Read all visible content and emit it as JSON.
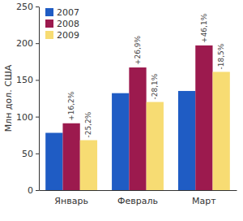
{
  "chart_data": {
    "type": "bar",
    "y_label": "Млн дол. США",
    "categories": [
      "Январь",
      "Февраль",
      "Март"
    ],
    "series": [
      {
        "name": "2007",
        "color": "#1f5cc4",
        "values": [
          78,
          132,
          135
        ]
      },
      {
        "name": "2008",
        "color": "#9c1a4e",
        "values": [
          91,
          167,
          197
        ],
        "annotations": [
          "+16,2%",
          "+26,9%",
          "+46,1%"
        ]
      },
      {
        "name": "2009",
        "color": "#f7dc73",
        "values": [
          68,
          120,
          161
        ],
        "annotations": [
          "-25,2%",
          "-28,1%",
          "-18,5%"
        ]
      }
    ],
    "ylim": [
      0,
      250
    ],
    "yticks": [
      0,
      50,
      100,
      150,
      200,
      250
    ],
    "grid": false,
    "legend": "top-left"
  }
}
